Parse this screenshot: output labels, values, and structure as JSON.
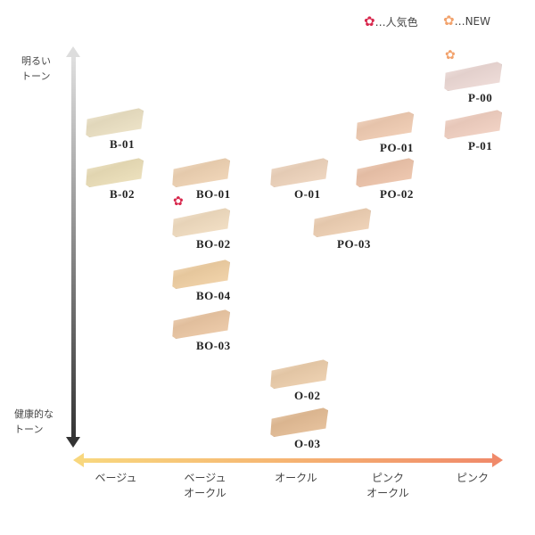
{
  "legend": [
    {
      "label": "…人気色",
      "icon": "flower-icon",
      "color": "#d8284d"
    },
    {
      "label": "…NEW",
      "icon": "flower-icon",
      "color": "#f2a26c"
    }
  ],
  "y_axis": {
    "top_label": [
      "明るい",
      "トーン"
    ],
    "bottom_label": [
      "健康的な",
      "トーン"
    ]
  },
  "x_axis": {
    "labels": [
      [
        "ベージュ"
      ],
      [
        "ベージュ",
        "オークル"
      ],
      [
        "オークル"
      ],
      [
        "ピンク",
        "オークル"
      ],
      [
        "ピンク"
      ]
    ]
  },
  "shades": [
    {
      "code": "B-01",
      "color": "#efe4c6"
    },
    {
      "code": "B-02",
      "color": "#efe2bb"
    },
    {
      "code": "BO-01",
      "color": "#f3d6b6"
    },
    {
      "code": "BO-02",
      "color": "#f5e0c3",
      "badge": "popular"
    },
    {
      "code": "BO-04",
      "color": "#f4d3a6"
    },
    {
      "code": "BO-03",
      "color": "#efcaa6"
    },
    {
      "code": "O-01",
      "color": "#f2d7bf"
    },
    {
      "code": "PO-03",
      "color": "#f2d3b6"
    },
    {
      "code": "O-02",
      "color": "#f0d1ae"
    },
    {
      "code": "O-03",
      "color": "#e8c098"
    },
    {
      "code": "PO-01",
      "color": "#f4cfb5"
    },
    {
      "code": "PO-02",
      "color": "#f1c7ad"
    },
    {
      "code": "P-00",
      "color": "#f1ddd9",
      "badge": "new"
    },
    {
      "code": "P-01",
      "color": "#f5d3c4"
    }
  ]
}
